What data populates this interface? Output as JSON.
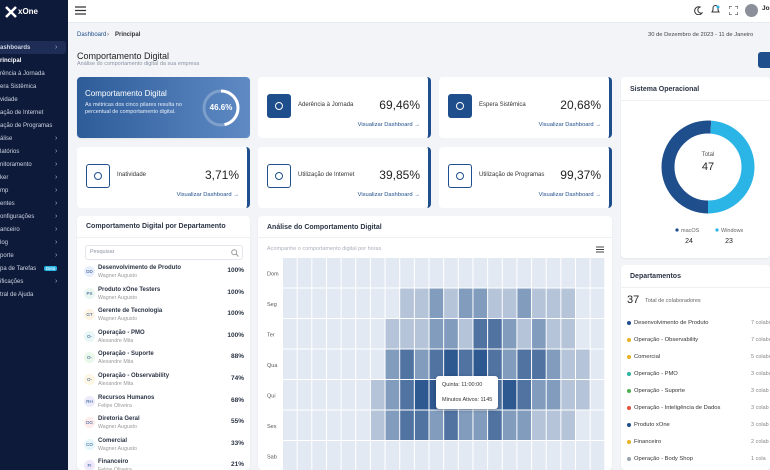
{
  "sidebar": {
    "brand": "xOne",
    "items": [
      {
        "label": "ashboards",
        "chevron": true
      },
      {
        "label": "rincipal",
        "chevron": false
      },
      {
        "label": "rência à Jornada",
        "chevron": false
      },
      {
        "label": "era Sistêmica",
        "chevron": false
      },
      {
        "label": "vidade",
        "chevron": false
      },
      {
        "label": "ação de Internet",
        "chevron": false
      },
      {
        "label": "ação de Programas",
        "chevron": false
      },
      {
        "label": "álise",
        "chevron": true
      },
      {
        "label": "latórios",
        "chevron": true
      },
      {
        "label": "nitoramento",
        "chevron": true
      },
      {
        "label": "ker",
        "chevron": true
      },
      {
        "label": "mp",
        "chevron": true
      },
      {
        "label": "entes",
        "chevron": true
      },
      {
        "label": "onfigurações",
        "chevron": true
      },
      {
        "label": "anceiro",
        "chevron": true
      },
      {
        "label": "log",
        "chevron": true
      },
      {
        "label": "porte",
        "chevron": true
      },
      {
        "label": "pa de Tarefas",
        "chevron": false
      },
      {
        "label": "ificações",
        "chevron": true
      },
      {
        "label": "tral de Ajuda",
        "chevron": false
      }
    ],
    "badge": "Beta"
  },
  "topbar": {
    "user": "Jo"
  },
  "breadcrumb": [
    "Dashboard",
    "Principal"
  ],
  "date_range": "30 de Dezembro de 2023 - 11 de Janeiro",
  "header": {
    "title": "Comportamento Digital",
    "subtitle": "Análise do comportamento digital da sua empresa"
  },
  "summary": {
    "title": "Comportamento Digital",
    "description": "As métricas dos cinco pilares resulta no percentual de comportamento digital.",
    "percent": 46.6,
    "percent_label": "46.6%"
  },
  "metrics": [
    {
      "label": "Aderência à Jornada",
      "value": "69,46%",
      "link": "Visualizar Dashboard →"
    },
    {
      "label": "Espera Sistêmica",
      "value": "20,68%",
      "link": "Visualizar Dashboard →"
    },
    {
      "label": "Inatividade",
      "value": "3,71%",
      "link": "Visualizar Dashboard →"
    },
    {
      "label": "Utilização de Internet",
      "value": "39,85%",
      "link": "Visualizar Dashboard →"
    },
    {
      "label": "Utilização de Programas",
      "value": "99,37%",
      "link": "Visualizar Dashboard →"
    }
  ],
  "os": {
    "title": "Sistema Operacional",
    "total_label": "Total",
    "total": 47,
    "series": [
      {
        "name": "macOS",
        "value": 24,
        "color": "#1f4e8c"
      },
      {
        "name": "Windows",
        "value": 23,
        "color": "#2bb5e6"
      }
    ]
  },
  "departments": {
    "title": "Departamentos",
    "total": 37,
    "total_label": "Total de colaboradores",
    "items": [
      {
        "name": "Desenvolvimento de Produto",
        "count": "7 colabo",
        "color": "#1f4e8c"
      },
      {
        "name": "Operação - Observability",
        "count": "7 colabo",
        "color": "#e5b323"
      },
      {
        "name": "Comercial",
        "count": "5 colabo",
        "color": "#e5b323"
      },
      {
        "name": "Operação - PMO",
        "count": "3 colabo",
        "color": "#2bb5a0"
      },
      {
        "name": "Operação - Suporte",
        "count": "3 colab",
        "color": "#4caf50"
      },
      {
        "name": "Operação - Inteligência de Dados",
        "count": "3 colab",
        "color": "#e0533d"
      },
      {
        "name": "Produto xOne",
        "count": "3 colab",
        "color": "#1f4e8c"
      },
      {
        "name": "Financeiro",
        "count": "2 colab",
        "color": "#e5b323"
      },
      {
        "name": "Operação - Body Shop",
        "count": "1 cola",
        "color": "#9aa3b2"
      }
    ]
  },
  "ranking": {
    "title": "Comportamento Digital por Departamento",
    "search": "Pesquisar",
    "rows": [
      {
        "initials": "DD",
        "name": "Desenvolvimento de Produto",
        "manager": "Wagner Augusto",
        "value": "100%"
      },
      {
        "initials": "PX",
        "name": "Produto xOne Testers",
        "manager": "Wagner Augusto",
        "value": "100%"
      },
      {
        "initials": "GT",
        "name": "Gerente de Tecnologia",
        "manager": "Wagner Augusto",
        "value": "100%"
      },
      {
        "initials": "O-",
        "name": "Operação - PMO",
        "manager": "Alexandre Mita",
        "value": "100%"
      },
      {
        "initials": "O-",
        "name": "Operação - Suporte",
        "manager": "Alexandre Mita",
        "value": "88%"
      },
      {
        "initials": "O-",
        "name": "Operação - Observability",
        "manager": "Alexandre Mita",
        "value": "74%"
      },
      {
        "initials": "RH",
        "name": "Recursos Humanos",
        "manager": "Felipe Oliveira",
        "value": "68%"
      },
      {
        "initials": "DG",
        "name": "Diretoria Geral",
        "manager": "Wagner Augusto",
        "value": "55%"
      },
      {
        "initials": "CO",
        "name": "Comercial",
        "manager": "Wagner Augusto",
        "value": "33%"
      },
      {
        "initials": "FI",
        "name": "Financeiro",
        "manager": "Felipe Oliveira",
        "value": "21%"
      }
    ]
  },
  "heatmap": {
    "title": "Análise do Comportamento Digital",
    "subtitle": "Acompanhe o comportamento digital por horas",
    "rows": [
      "Dom",
      "Seg",
      "Ter",
      "Qua",
      "Qui",
      "Sex",
      "Sab"
    ],
    "values": [
      [
        30,
        30,
        30,
        30,
        30,
        30,
        30,
        30,
        30,
        30,
        30,
        30,
        30,
        30,
        30,
        30,
        30,
        30,
        30,
        30,
        30,
        30
      ],
      [
        30,
        30,
        30,
        30,
        30,
        30,
        30,
        30,
        300,
        300,
        600,
        300,
        600,
        600,
        300,
        300,
        600,
        300,
        300,
        300,
        30,
        30
      ],
      [
        30,
        30,
        30,
        30,
        30,
        30,
        30,
        300,
        300,
        300,
        600,
        600,
        300,
        900,
        900,
        600,
        300,
        600,
        300,
        300,
        30,
        30
      ],
      [
        30,
        30,
        30,
        30,
        30,
        30,
        30,
        600,
        900,
        600,
        900,
        1100,
        900,
        1100,
        900,
        600,
        900,
        900,
        600,
        300,
        300,
        30
      ],
      [
        30,
        30,
        30,
        30,
        30,
        30,
        300,
        600,
        900,
        1100,
        1100,
        1145,
        1100,
        900,
        900,
        1100,
        900,
        600,
        600,
        300,
        300,
        30
      ],
      [
        30,
        30,
        30,
        30,
        30,
        30,
        300,
        600,
        900,
        900,
        600,
        900,
        600,
        600,
        900,
        600,
        600,
        300,
        300,
        300,
        30,
        30
      ],
      [
        30,
        30,
        30,
        30,
        30,
        30,
        30,
        30,
        30,
        30,
        30,
        30,
        30,
        30,
        30,
        30,
        30,
        30,
        30,
        30,
        30,
        30
      ]
    ],
    "tooltip": {
      "title": "Quinta: 11:00:00",
      "body": "Minutos Ativos: 1145"
    }
  }
}
